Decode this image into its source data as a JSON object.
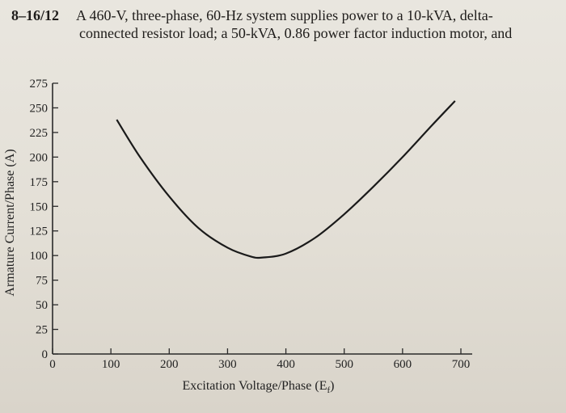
{
  "problem": {
    "number": "8–16/12",
    "text_line1": "A 460-V, three-phase, 60-Hz system supplies power to a 10-kVA, delta-",
    "text_line2": "connected resistor load; a 50-kVA, 0.86 power factor induction motor, and"
  },
  "chart_data": {
    "type": "line",
    "title": "",
    "xlabel": "Excitation Voltage/Phase (E",
    "xlabel_subscript": "f",
    "xlabel_close": ")",
    "ylabel": "Armature Current/Phase (A)",
    "xlim": [
      0,
      700
    ],
    "ylim": [
      0,
      275
    ],
    "x_ticks": [
      0,
      100,
      200,
      300,
      400,
      500,
      600,
      700
    ],
    "y_ticks": [
      0,
      25,
      50,
      75,
      100,
      125,
      150,
      175,
      200,
      225,
      250,
      275
    ],
    "series": [
      {
        "x": [
          110,
          150,
          200,
          250,
          300,
          340,
          360,
          400,
          450,
          500,
          550,
          600,
          650,
          690
        ],
        "y": [
          238,
          200,
          160,
          128,
          108,
          99,
          98,
          102,
          118,
          142,
          170,
          200,
          232,
          257
        ]
      }
    ],
    "grid": false,
    "line_color": "#1a1a1a"
  }
}
